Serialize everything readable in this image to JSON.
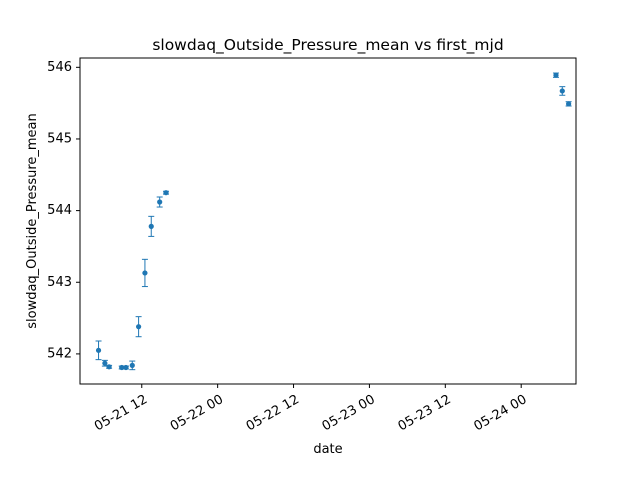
{
  "chart_data": {
    "type": "scatter",
    "title": "slowdaq_Outside_Pressure_mean vs first_mjd",
    "xlabel": "date",
    "ylabel": "slowdaq_Outside_Pressure_mean",
    "x_ticks": [
      "05-21 12",
      "05-22 00",
      "05-22 12",
      "05-23 00",
      "05-23 12",
      "05-24 00"
    ],
    "y_ticks": [
      "542",
      "543",
      "544",
      "545",
      "546"
    ],
    "xlim": [
      "2024-05-21 02:14",
      "2024-05-24 08:40"
    ],
    "ylim": [
      541.58,
      546.13
    ],
    "grid": false,
    "color": "#1f77b4",
    "points": [
      {
        "x": "2024-05-21 05:10",
        "y": 542.05,
        "err": 0.13
      },
      {
        "x": "2024-05-21 06:10",
        "y": 541.87,
        "err": 0.04
      },
      {
        "x": "2024-05-21 06:50",
        "y": 541.82,
        "err": 0.02
      },
      {
        "x": "2024-05-21 08:50",
        "y": 541.81,
        "err": 0.02
      },
      {
        "x": "2024-05-21 09:30",
        "y": 541.81,
        "err": 0.02
      },
      {
        "x": "2024-05-21 10:30",
        "y": 541.84,
        "err": 0.06
      },
      {
        "x": "2024-05-21 11:30",
        "y": 542.38,
        "err": 0.14
      },
      {
        "x": "2024-05-21 12:30",
        "y": 543.13,
        "err": 0.19
      },
      {
        "x": "2024-05-21 13:30",
        "y": 543.78,
        "err": 0.14
      },
      {
        "x": "2024-05-21 14:50",
        "y": 544.12,
        "err": 0.07
      },
      {
        "x": "2024-05-21 15:50",
        "y": 544.25,
        "err": 0.02
      },
      {
        "x": "2024-05-24 05:30",
        "y": 545.89,
        "err": 0.03
      },
      {
        "x": "2024-05-24 06:30",
        "y": 545.67,
        "err": 0.06
      },
      {
        "x": "2024-05-24 07:30",
        "y": 545.49,
        "err": 0.03
      }
    ]
  }
}
